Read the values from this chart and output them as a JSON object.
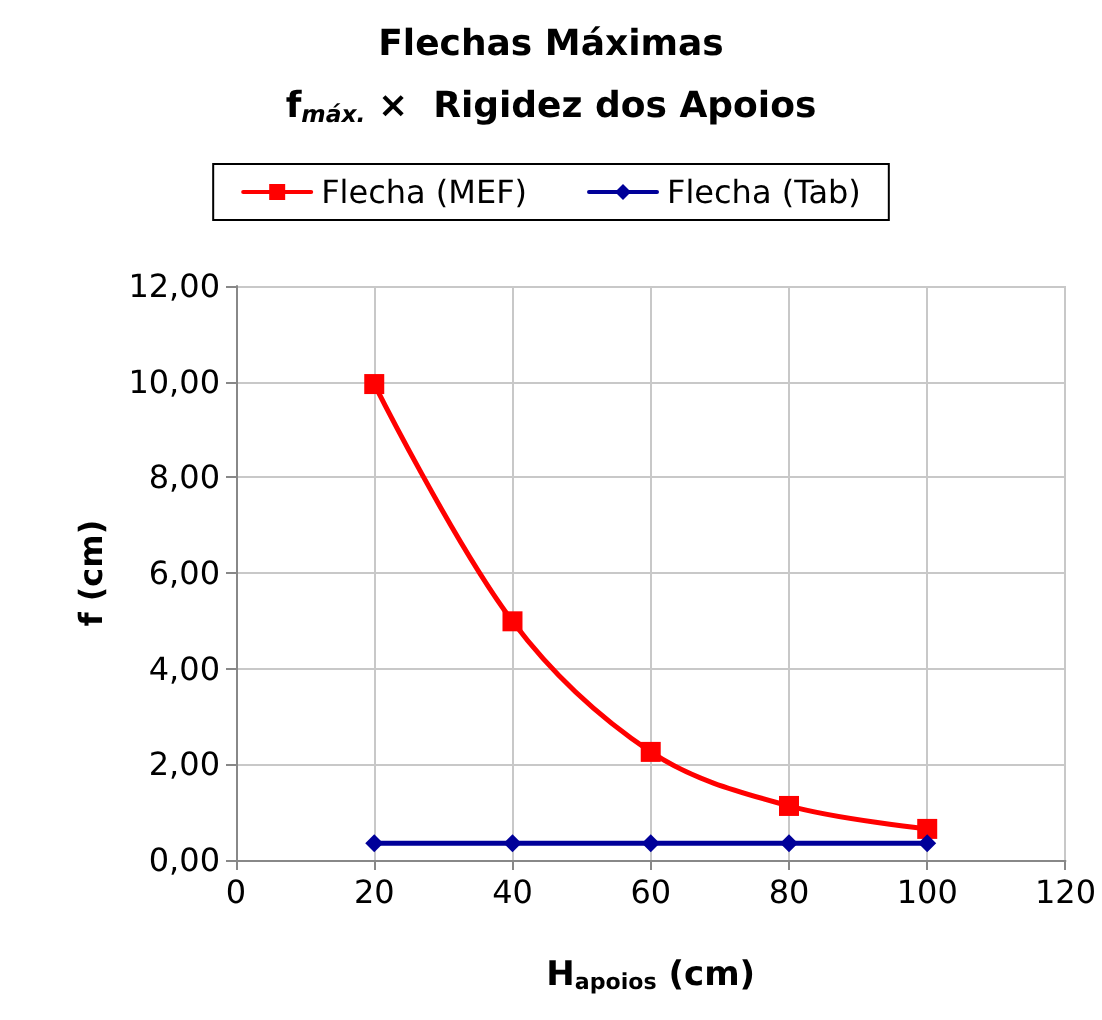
{
  "chart_data": {
    "type": "line",
    "title": "Flechas Máximas",
    "subtitle": "f$_{máx.}$ ×  Rigidez dos Apoios",
    "xlabel": "H$_{apoios}$ (cm)",
    "ylabel": "f (cm)",
    "x": [
      20,
      40,
      60,
      80,
      100
    ],
    "series": [
      {
        "name": "Flecha (MEF)",
        "color": "#ff0000",
        "marker": "square",
        "values": [
          9.95,
          4.99,
          2.26,
          1.13,
          0.65
        ]
      },
      {
        "name": "Flecha (Tab)",
        "color": "#000099",
        "marker": "diamond",
        "values": [
          0.35,
          0.35,
          0.35,
          0.35,
          0.35
        ]
      }
    ],
    "xlim": [
      0,
      120
    ],
    "xticks": [
      0,
      20,
      40,
      60,
      80,
      100,
      120
    ],
    "ylim": [
      0,
      12
    ],
    "yticks": [
      {
        "value": 0,
        "label": "0,00"
      },
      {
        "value": 2,
        "label": "2,00"
      },
      {
        "value": 4,
        "label": "4,00"
      },
      {
        "value": 6,
        "label": "6,00"
      },
      {
        "value": 8,
        "label": "8,00"
      },
      {
        "value": 10,
        "label": "10,00"
      },
      {
        "value": 12,
        "label": "12,00"
      }
    ],
    "grid": true,
    "legend": "top",
    "line_style": "solid"
  }
}
